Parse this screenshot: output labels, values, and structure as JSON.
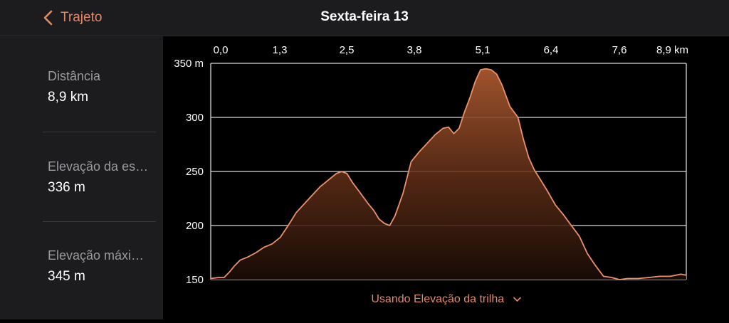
{
  "nav": {
    "back_label": "Trajeto",
    "title": "Sexta-feira 13"
  },
  "stats": [
    {
      "label": "Distância",
      "value": "8,9 km"
    },
    {
      "label": "Elevação da es…",
      "value": "336 m"
    },
    {
      "label": "Elevação máxi…",
      "value": "345 m"
    }
  ],
  "footer": {
    "source_label": "Usando Elevação da trilha"
  },
  "colors": {
    "accent": "#e08a68",
    "line": "#e8926d"
  },
  "chart_data": {
    "type": "area",
    "xlim": [
      0,
      8.9
    ],
    "ylim": [
      150,
      350
    ],
    "x_tick_labels": [
      "0,0",
      "1,3",
      "2,5",
      "3,8",
      "5,1",
      "6,4",
      "7,6",
      "8,9 km"
    ],
    "x_ticks": [
      0,
      1.3,
      2.5,
      3.8,
      5.1,
      6.4,
      7.6,
      8.9
    ],
    "y_tick_labels": [
      "350 m",
      "300",
      "250",
      "200",
      "150"
    ],
    "y_ticks": [
      350,
      300,
      250,
      200,
      150
    ],
    "grid": true,
    "x": [
      0,
      0.15,
      0.25,
      0.35,
      0.45,
      0.55,
      0.7,
      0.85,
      1.0,
      1.15,
      1.3,
      1.45,
      1.6,
      1.75,
      1.9,
      2.05,
      2.2,
      2.35,
      2.45,
      2.55,
      2.65,
      2.8,
      2.95,
      3.05,
      3.15,
      3.25,
      3.35,
      3.45,
      3.6,
      3.75,
      3.9,
      4.05,
      4.2,
      4.35,
      4.45,
      4.55,
      4.65,
      4.75,
      4.85,
      4.95,
      5.05,
      5.15,
      5.25,
      5.35,
      5.45,
      5.6,
      5.75,
      5.85,
      5.95,
      6.05,
      6.15,
      6.3,
      6.45,
      6.6,
      6.75,
      6.9,
      7.05,
      7.2,
      7.35,
      7.5,
      7.65,
      7.8,
      8.0,
      8.2,
      8.4,
      8.6,
      8.8,
      8.9
    ],
    "y": [
      151,
      152,
      152,
      157,
      163,
      168,
      171,
      175,
      180,
      183,
      189,
      200,
      212,
      220,
      228,
      236,
      242,
      248,
      250,
      248,
      240,
      230,
      220,
      214,
      206,
      202,
      200,
      209,
      230,
      259,
      268,
      276,
      284,
      290,
      291,
      285,
      290,
      305,
      318,
      333,
      344,
      345,
      344,
      340,
      330,
      310,
      300,
      280,
      263,
      252,
      244,
      232,
      219,
      210,
      200,
      190,
      174,
      163,
      153,
      152,
      150,
      151,
      151,
      152,
      153,
      153,
      155,
      154
    ]
  }
}
